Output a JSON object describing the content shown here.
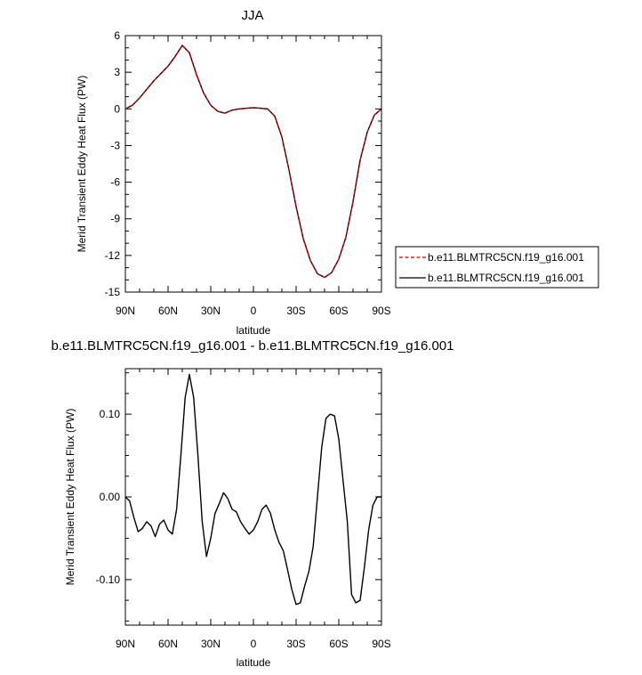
{
  "chart_data": [
    {
      "type": "line",
      "title": "JJA",
      "xlabel": "latitude",
      "ylabel": "Merid Transient Eddy Heat Flux (PW)",
      "xlim": [
        90,
        -90
      ],
      "ylim": [
        -15,
        6
      ],
      "x_ticks": [
        90,
        60,
        30,
        0,
        -30,
        -60,
        -90
      ],
      "x_tick_labels": [
        "90N",
        "60N",
        "30N",
        "0",
        "30S",
        "60S",
        "90S"
      ],
      "y_ticks": [
        6,
        3,
        0,
        -3,
        -6,
        -9,
        -12,
        -15
      ],
      "y_tick_labels": [
        "6",
        "3",
        "0",
        "-3",
        "-6",
        "-9",
        "-12",
        "-15"
      ],
      "grid": false,
      "legend_position": "right",
      "x": [
        90,
        85,
        80,
        75,
        70,
        65,
        60,
        55,
        50,
        45,
        40,
        35,
        30,
        25,
        20,
        15,
        10,
        5,
        0,
        -5,
        -10,
        -15,
        -20,
        -25,
        -30,
        -35,
        -40,
        -45,
        -50,
        -55,
        -60,
        -65,
        -70,
        -75,
        -80,
        -85,
        -90
      ],
      "series": [
        {
          "name": "b.e11.BLMTRC5CN.f19_g16.001",
          "color": "#cc0000",
          "dash": "dashed",
          "values": [
            0.0,
            0.3,
            0.9,
            1.6,
            2.3,
            2.9,
            3.5,
            4.3,
            5.2,
            4.6,
            2.8,
            1.3,
            0.3,
            -0.2,
            -0.35,
            -0.1,
            0.0,
            0.05,
            0.1,
            0.05,
            0.0,
            -0.6,
            -2.3,
            -5.0,
            -8.0,
            -10.6,
            -12.4,
            -13.5,
            -13.8,
            -13.4,
            -12.3,
            -10.5,
            -7.6,
            -4.2,
            -1.9,
            -0.5,
            0.0
          ]
        },
        {
          "name": "b.e11.BLMTRC5CN.f19_g16.001",
          "color": "#000000",
          "dash": "solid",
          "values": [
            0.0,
            0.3,
            0.9,
            1.6,
            2.3,
            2.9,
            3.5,
            4.3,
            5.2,
            4.6,
            2.8,
            1.3,
            0.3,
            -0.2,
            -0.35,
            -0.1,
            0.0,
            0.05,
            0.1,
            0.05,
            0.0,
            -0.6,
            -2.3,
            -5.0,
            -8.0,
            -10.6,
            -12.4,
            -13.5,
            -13.8,
            -13.4,
            -12.3,
            -10.5,
            -7.6,
            -4.2,
            -1.9,
            -0.5,
            0.0
          ]
        }
      ]
    },
    {
      "type": "line",
      "title": "b.e11.BLMTRC5CN.f19_g16.001 - b.e11.BLMTRC5CN.f19_g16.001",
      "xlabel": "latitude",
      "ylabel": "Merid Transient Eddy Heat Flux (PW)",
      "xlim": [
        90,
        -90
      ],
      "ylim": [
        -0.155,
        0.155
      ],
      "x_ticks": [
        90,
        60,
        30,
        0,
        -30,
        -60,
        -90
      ],
      "x_tick_labels": [
        "90N",
        "60N",
        "30N",
        "0",
        "30S",
        "60S",
        "90S"
      ],
      "y_ticks": [
        0.1,
        0.0,
        -0.1
      ],
      "y_tick_labels": [
        "0.10",
        "0.00",
        "-0.10"
      ],
      "grid": false,
      "x": [
        90,
        87,
        84,
        81,
        78,
        75,
        72,
        69,
        66,
        63,
        60,
        57,
        54,
        51,
        48,
        45,
        42,
        39,
        36,
        33,
        30,
        27,
        24,
        21,
        18,
        15,
        12,
        9,
        6,
        3,
        0,
        -3,
        -6,
        -9,
        -12,
        -15,
        -18,
        -21,
        -24,
        -27,
        -30,
        -33,
        -36,
        -39,
        -42,
        -45,
        -48,
        -51,
        -54,
        -57,
        -60,
        -63,
        -66,
        -69,
        -72,
        -75,
        -78,
        -81,
        -84,
        -87,
        -90
      ],
      "series": [
        {
          "name": "",
          "color": "#000000",
          "dash": "solid",
          "values": [
            0.0,
            -0.005,
            -0.025,
            -0.042,
            -0.038,
            -0.03,
            -0.035,
            -0.048,
            -0.033,
            -0.028,
            -0.04,
            -0.045,
            -0.015,
            0.05,
            0.12,
            0.148,
            0.12,
            0.05,
            -0.03,
            -0.072,
            -0.05,
            -0.02,
            -0.008,
            0.005,
            -0.002,
            -0.015,
            -0.018,
            -0.03,
            -0.038,
            -0.045,
            -0.04,
            -0.03,
            -0.015,
            -0.01,
            -0.02,
            -0.04,
            -0.055,
            -0.065,
            -0.088,
            -0.112,
            -0.13,
            -0.128,
            -0.108,
            -0.09,
            -0.06,
            0.0,
            0.06,
            0.095,
            0.1,
            0.098,
            0.07,
            0.02,
            -0.03,
            -0.118,
            -0.128,
            -0.125,
            -0.085,
            -0.04,
            -0.01,
            0.0,
            0.0
          ]
        }
      ]
    }
  ]
}
